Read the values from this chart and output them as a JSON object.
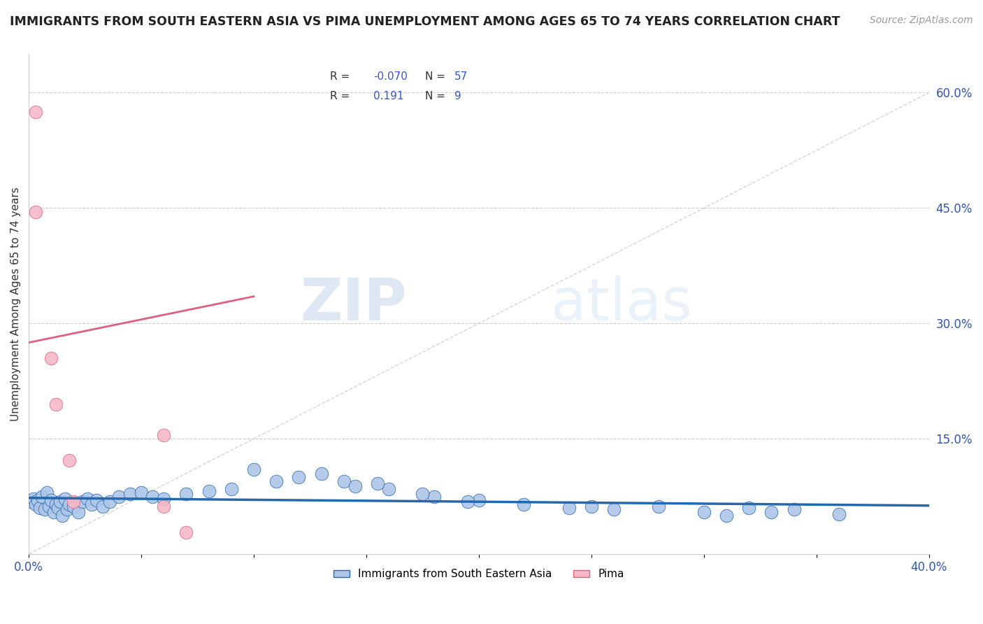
{
  "title": "IMMIGRANTS FROM SOUTH EASTERN ASIA VS PIMA UNEMPLOYMENT AMONG AGES 65 TO 74 YEARS CORRELATION CHART",
  "source": "Source: ZipAtlas.com",
  "ylabel": "Unemployment Among Ages 65 to 74 years",
  "xlim": [
    0.0,
    0.4
  ],
  "ylim": [
    0.0,
    0.65
  ],
  "ytick_labels_right": [
    "15.0%",
    "30.0%",
    "45.0%",
    "60.0%"
  ],
  "ytick_vals_right": [
    0.15,
    0.3,
    0.45,
    0.6
  ],
  "color_blue": "#aec6e8",
  "color_blue_line": "#2468b0",
  "color_pink": "#f4b8c8",
  "color_pink_line": "#e06080",
  "color_diag_line": "#cccccc",
  "blue_scatter_x": [
    0.001,
    0.002,
    0.003,
    0.004,
    0.005,
    0.006,
    0.007,
    0.008,
    0.009,
    0.01,
    0.011,
    0.012,
    0.013,
    0.014,
    0.015,
    0.016,
    0.017,
    0.018,
    0.02,
    0.022,
    0.024,
    0.026,
    0.028,
    0.03,
    0.033,
    0.036,
    0.04,
    0.045,
    0.05,
    0.055,
    0.06,
    0.07,
    0.08,
    0.09,
    0.1,
    0.11,
    0.12,
    0.13,
    0.14,
    0.16,
    0.18,
    0.2,
    0.22,
    0.24,
    0.26,
    0.28,
    0.3,
    0.32,
    0.34,
    0.36,
    0.145,
    0.155,
    0.175,
    0.195,
    0.25,
    0.31,
    0.33
  ],
  "blue_scatter_y": [
    0.068,
    0.072,
    0.065,
    0.07,
    0.06,
    0.075,
    0.058,
    0.08,
    0.062,
    0.07,
    0.055,
    0.065,
    0.06,
    0.068,
    0.05,
    0.072,
    0.058,
    0.065,
    0.062,
    0.055,
    0.068,
    0.072,
    0.065,
    0.07,
    0.062,
    0.068,
    0.075,
    0.078,
    0.08,
    0.075,
    0.072,
    0.078,
    0.082,
    0.085,
    0.11,
    0.095,
    0.1,
    0.105,
    0.095,
    0.085,
    0.075,
    0.07,
    0.065,
    0.06,
    0.058,
    0.062,
    0.055,
    0.06,
    0.058,
    0.052,
    0.088,
    0.092,
    0.078,
    0.068,
    0.062,
    0.05,
    0.055
  ],
  "pink_scatter_x": [
    0.003,
    0.003,
    0.01,
    0.012,
    0.018,
    0.02,
    0.06,
    0.06,
    0.07
  ],
  "pink_scatter_y": [
    0.575,
    0.445,
    0.255,
    0.195,
    0.122,
    0.068,
    0.155,
    0.062,
    0.028
  ],
  "blue_trend_x": [
    0.0,
    0.4
  ],
  "blue_trend_y": [
    0.073,
    0.063
  ],
  "pink_trend_x": [
    0.0,
    0.1
  ],
  "pink_trend_y": [
    0.275,
    0.335
  ],
  "diag_line_x": [
    0.0,
    0.4
  ],
  "diag_line_y": [
    0.0,
    0.6
  ]
}
